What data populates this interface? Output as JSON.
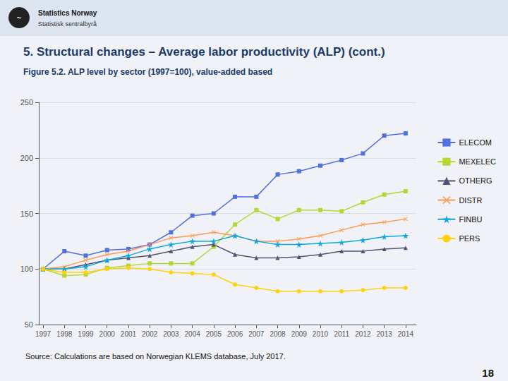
{
  "chart_data": {
    "type": "line",
    "title": "5. Structural changes – Average labor productivity (ALP) (cont.)",
    "subtitle": "Figure 5.2. ALP level by sector (1997=100), value-added based",
    "annotations": [
      "~",
      "Statistics Norway",
      "Statistisk sentralbyrå",
      "Source: Calculations are based on Norwegian KLEMS database, July 2017.",
      "18"
    ],
    "x": [
      1997,
      1998,
      1999,
      2000,
      2001,
      2002,
      2003,
      2004,
      2005,
      2006,
      2007,
      2008,
      2009,
      2010,
      2011,
      2012,
      2013,
      2014
    ],
    "series": [
      {
        "name": "ELECOM",
        "marker": "square",
        "values": [
          100,
          116,
          112,
          117,
          118,
          122,
          133,
          148,
          150,
          165,
          165,
          185,
          188,
          193,
          198,
          204,
          220,
          222
        ]
      },
      {
        "name": "MEXELEC",
        "marker": "square",
        "values": [
          100,
          94,
          95,
          101,
          103,
          105,
          105,
          105,
          120,
          140,
          153,
          145,
          153,
          153,
          152,
          160,
          167,
          170
        ]
      },
      {
        "name": "OTHERG",
        "marker": "triangle",
        "values": [
          100,
          100,
          104,
          108,
          110,
          112,
          116,
          120,
          122,
          113,
          110,
          110,
          111,
          113,
          116,
          116,
          118,
          119
        ]
      },
      {
        "name": "DISTR",
        "marker": "x",
        "values": [
          100,
          102,
          108,
          113,
          116,
          122,
          128,
          130,
          133,
          130,
          125,
          125,
          127,
          130,
          135,
          140,
          142,
          145
        ]
      },
      {
        "name": "FINBU",
        "marker": "star",
        "values": [
          100,
          100,
          102,
          108,
          112,
          118,
          122,
          125,
          125,
          130,
          125,
          122,
          122,
          123,
          124,
          126,
          129,
          130
        ]
      },
      {
        "name": "PERS",
        "marker": "circle",
        "values": [
          100,
          97,
          97,
          100,
          101,
          100,
          97,
          96,
          95,
          86,
          83,
          80,
          80,
          80,
          80,
          81,
          83,
          83
        ]
      }
    ],
    "xlim": [
      1996.8,
      2014.5
    ],
    "xticks": [
      1997,
      1998,
      1999,
      2000,
      2001,
      2002,
      2003,
      2004,
      2005,
      2006,
      2007,
      2008,
      2009,
      2010,
      2011,
      2012,
      2013,
      2014
    ],
    "ylim": [
      50,
      250
    ],
    "yticks": [
      50,
      100,
      150,
      200,
      250
    ],
    "grid": true,
    "legend": "right"
  }
}
